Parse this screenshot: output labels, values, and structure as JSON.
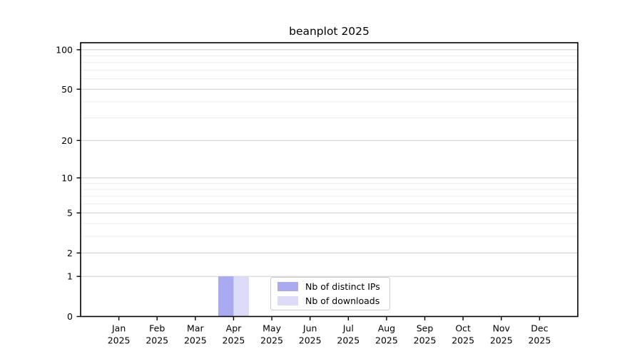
{
  "title": "beanplot 2025",
  "legend": {
    "items": [
      {
        "label": "Nb of distinct IPs",
        "color": "#aaaaf0"
      },
      {
        "label": "Nb of downloads",
        "color": "#dcdcf8"
      }
    ]
  },
  "chart_data": {
    "type": "bar",
    "title": "beanplot 2025",
    "categories": [
      "Jan 2025",
      "Feb 2025",
      "Mar 2025",
      "Apr 2025",
      "May 2025",
      "Jun 2025",
      "Jul 2025",
      "Aug 2025",
      "Sep 2025",
      "Oct 2025",
      "Nov 2025",
      "Dec 2025"
    ],
    "x_months": [
      "Jan",
      "Feb",
      "Mar",
      "Apr",
      "May",
      "Jun",
      "Jul",
      "Aug",
      "Sep",
      "Oct",
      "Nov",
      "Dec"
    ],
    "x_year": "2025",
    "series": [
      {
        "name": "Nb of distinct IPs",
        "color": "#aaaaf0",
        "values": [
          0,
          0,
          0,
          1,
          0,
          0,
          0,
          0,
          0,
          0,
          0,
          0
        ]
      },
      {
        "name": "Nb of downloads",
        "color": "#dcdcf8",
        "values": [
          0,
          0,
          0,
          1,
          0,
          0,
          0,
          0,
          0,
          0,
          0,
          0
        ]
      }
    ],
    "xlabel": "",
    "ylabel": "",
    "y_scale": "log1p",
    "ylim": [
      0,
      113
    ],
    "y_major_ticks": [
      0,
      1,
      2,
      5,
      10,
      20,
      50,
      100
    ],
    "y_minor_ticks": [
      3,
      4,
      6,
      7,
      8,
      9,
      30,
      40,
      60,
      70,
      80,
      90
    ],
    "grid": "horizontal major and minor gridlines",
    "legend_position": "inside lower-center",
    "colors": {
      "grid_major": "#d2d2d2",
      "grid_minor": "#ececec",
      "axis": "#000000",
      "background": "#ffffff"
    }
  }
}
